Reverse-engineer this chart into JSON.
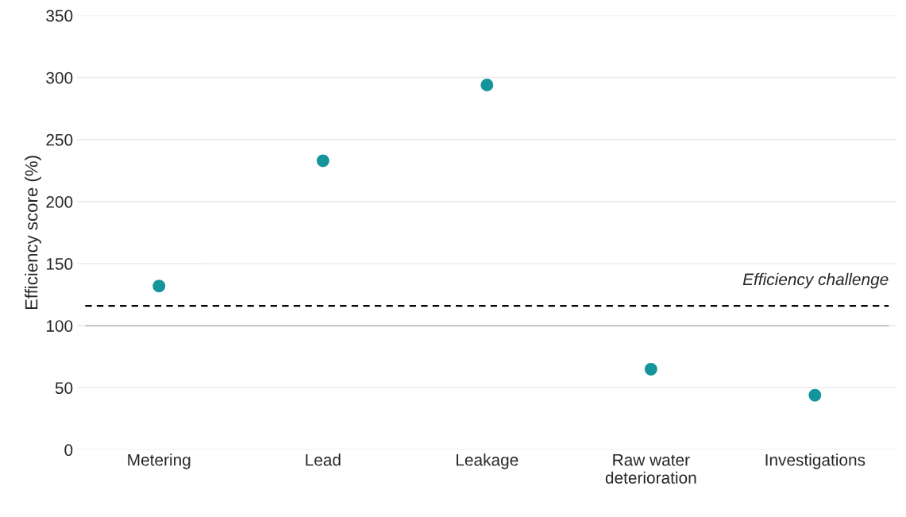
{
  "chart_data": {
    "type": "scatter",
    "ylabel": "Efficiency score (%)",
    "categories": [
      "Metering",
      "Lead",
      "Leakage",
      "Raw water\ndeterioration",
      "Investigations"
    ],
    "series": [
      {
        "color": "#13959b",
        "values": [
          132,
          233,
          294,
          65,
          44
        ]
      }
    ],
    "ylim": [
      0,
      350
    ],
    "yticks": [
      0,
      50,
      100,
      150,
      200,
      250,
      300,
      350
    ],
    "grid": "y",
    "marker": "circle",
    "legend": false,
    "ref_lines": [
      {
        "axis": "y",
        "value": 100,
        "label": null,
        "color": "#c8c8c8",
        "line_style": "solid"
      },
      {
        "axis": "y",
        "value": 116,
        "label": "Efficiency challenge",
        "color": "#000000",
        "line_style": "dashed"
      }
    ]
  }
}
